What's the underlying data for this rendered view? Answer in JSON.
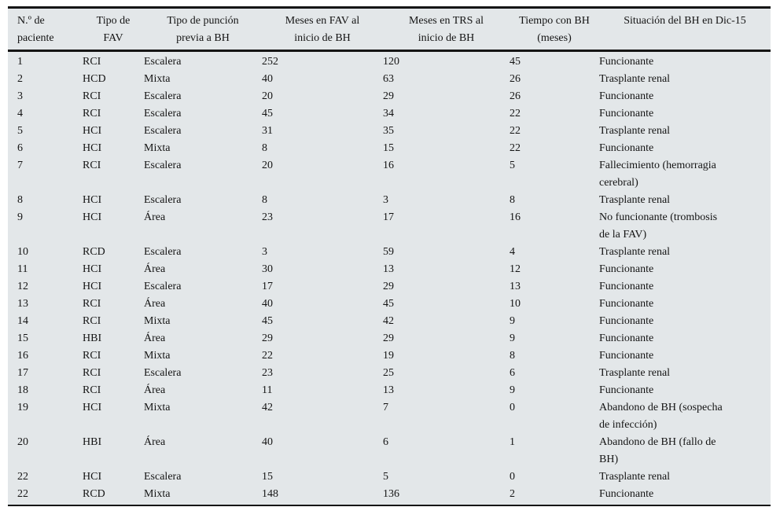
{
  "table": {
    "headers": [
      "N.º de\npaciente",
      "Tipo de\nFAV",
      "Tipo de punción\nprevia a BH",
      "Meses en FAV al\ninicio de BH",
      "Meses en TRS al\ninicio de BH",
      "Tiempo con BH\n(meses)",
      "Situación del BH en Dic-15"
    ],
    "rows": [
      [
        "1",
        "RCI",
        "Escalera",
        "252",
        "120",
        "45",
        "Funcionante"
      ],
      [
        "2",
        "HCD",
        "Mixta",
        "40",
        "63",
        "26",
        "Trasplante renal"
      ],
      [
        "3",
        "RCI",
        "Escalera",
        "20",
        "29",
        "26",
        "Funcionante"
      ],
      [
        "4",
        "RCI",
        "Escalera",
        "45",
        "34",
        "22",
        "Funcionante"
      ],
      [
        "5",
        "HCI",
        "Escalera",
        "31",
        "35",
        "22",
        "Trasplante renal"
      ],
      [
        "6",
        "HCI",
        "Mixta",
        "8",
        "15",
        "22",
        "Funcionante"
      ],
      [
        "7",
        "RCI",
        "Escalera",
        "20",
        "16",
        "5",
        "Fallecimiento (hemorragia\ncerebral)"
      ],
      [
        "8",
        "HCI",
        "Escalera",
        "8",
        "3",
        "8",
        "Trasplante renal"
      ],
      [
        "9",
        "HCI",
        "Área",
        "23",
        "17",
        "16",
        "No funcionante (trombosis\nde la FAV)"
      ],
      [
        "10",
        "RCD",
        "Escalera",
        "3",
        "59",
        "4",
        "Trasplante renal"
      ],
      [
        "11",
        "HCI",
        "Área",
        "30",
        "13",
        "12",
        "Funcionante"
      ],
      [
        "12",
        "HCI",
        "Escalera",
        "17",
        "29",
        "13",
        "Funcionante"
      ],
      [
        "13",
        "RCI",
        "Área",
        "40",
        "45",
        "10",
        "Funcionante"
      ],
      [
        "14",
        "RCI",
        "Mixta",
        "45",
        "42",
        "9",
        "Funcionante"
      ],
      [
        "15",
        "HBI",
        "Área",
        "29",
        "29",
        "9",
        "Funcionante"
      ],
      [
        "16",
        "RCI",
        "Mixta",
        "22",
        "19",
        "8",
        "Funcionante"
      ],
      [
        "17",
        "RCI",
        "Escalera",
        "23",
        "25",
        "6",
        "Trasplante renal"
      ],
      [
        "18",
        "RCI",
        "Área",
        "11",
        "13",
        "9",
        "Funcionante"
      ],
      [
        "19",
        "HCI",
        "Mixta",
        "42",
        "7",
        "0",
        "Abandono de BH (sospecha\nde infección)"
      ],
      [
        "20",
        "HBI",
        "Área",
        "40",
        "6",
        "1",
        "Abandono de BH (fallo de\nBH)"
      ],
      [
        "22",
        "HCI",
        "Escalera",
        "15",
        "5",
        "0",
        "Trasplante renal"
      ],
      [
        "22",
        "RCD",
        "Mixta",
        "148",
        "136",
        "2",
        "Funcionante"
      ]
    ]
  },
  "colors": {
    "table_background": "#e3e7e9",
    "rule": "#151515",
    "text": "#141414",
    "page_background": "#ffffff"
  }
}
